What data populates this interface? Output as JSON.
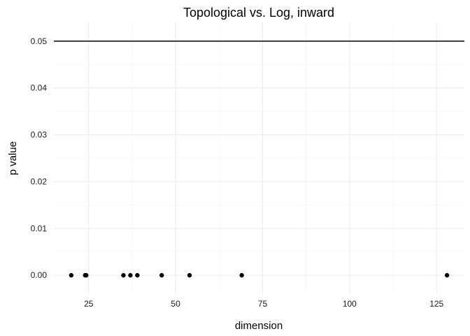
{
  "chart_data": {
    "type": "scatter",
    "title": "Topological vs. Log, inward",
    "xlabel": "dimension",
    "ylabel": "p value",
    "xlim": [
      15,
      133
    ],
    "ylim": [
      -0.004,
      0.054
    ],
    "xticks": [
      25,
      50,
      75,
      100,
      125
    ],
    "yticks": [
      0.0,
      0.01,
      0.02,
      0.03,
      0.04,
      0.05
    ],
    "ytick_labels": [
      "0.00",
      "0.01",
      "0.02",
      "0.03",
      "0.04",
      "0.05"
    ],
    "points": [
      {
        "x": 20,
        "y": 0.0
      },
      {
        "x": 24,
        "y": 0.0
      },
      {
        "x": 24.3,
        "y": 0.0
      },
      {
        "x": 35,
        "y": 0.0
      },
      {
        "x": 37,
        "y": 0.0
      },
      {
        "x": 39,
        "y": 0.0
      },
      {
        "x": 46,
        "y": 0.0
      },
      {
        "x": 54,
        "y": 0.0
      },
      {
        "x": 69,
        "y": 0.0
      },
      {
        "x": 128,
        "y": 0.0
      }
    ],
    "reference_line": {
      "y": 0.05
    },
    "grid": true,
    "legend": "none"
  }
}
